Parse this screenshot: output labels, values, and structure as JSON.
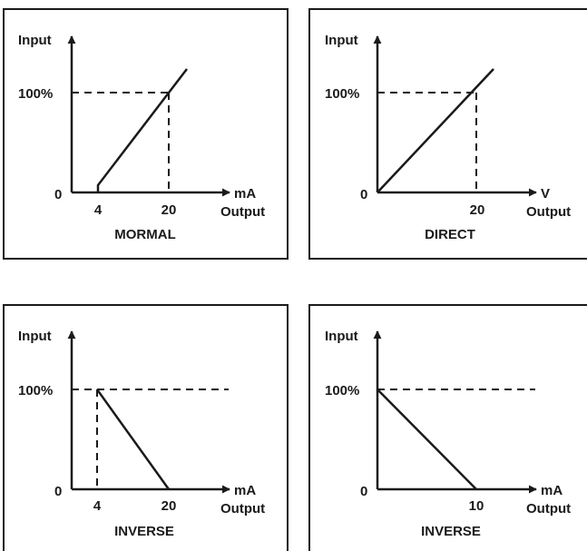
{
  "panels": [
    {
      "caption": "MORMAL",
      "y_axis_label": "Input",
      "y_tick_100": "100%",
      "y_tick_0": "0",
      "x_unit": "mA",
      "x_axis_label": "Output",
      "x_ticks": [
        "4",
        "20"
      ],
      "curve": "normal"
    },
    {
      "caption": "DIRECT",
      "y_axis_label": "Input",
      "y_tick_100": "100%",
      "y_tick_0": "0",
      "x_unit": "V",
      "x_axis_label": "Output",
      "x_ticks": [
        "20"
      ],
      "curve": "direct"
    },
    {
      "caption": "INVERSE",
      "y_axis_label": "Input",
      "y_tick_100": "100%",
      "y_tick_0": "0",
      "x_unit": "mA",
      "x_axis_label": "Output",
      "x_ticks": [
        "4",
        "20"
      ],
      "curve": "inverse-offset"
    },
    {
      "caption": "INVERSE",
      "y_axis_label": "Input",
      "y_tick_100": "100%",
      "y_tick_0": "0",
      "x_unit": "mA",
      "x_axis_label": "Output",
      "x_ticks": [
        "10"
      ],
      "curve": "inverse"
    }
  ],
  "colors": {
    "ink": "#1a1a1a",
    "background": "#ffffff"
  }
}
